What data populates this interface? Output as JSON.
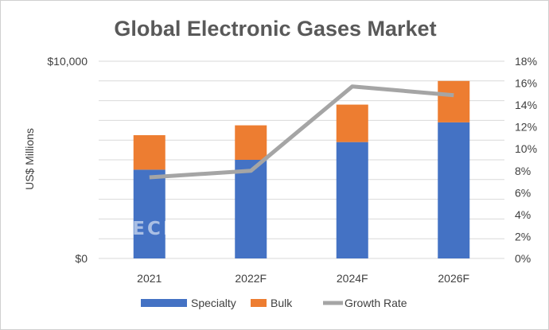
{
  "chart_data": {
    "type": "bar",
    "title": "Global Electronic Gases Market",
    "categories": [
      "2021",
      "2022F",
      "2024F",
      "2026F"
    ],
    "series": [
      {
        "name": "Specialty",
        "values": [
          4500,
          5000,
          5900,
          6900
        ],
        "color": "#4472C4"
      },
      {
        "name": "Bulk",
        "values": [
          1750,
          1750,
          1900,
          2100
        ],
        "color": "#ED7D31"
      }
    ],
    "line_series": {
      "name": "Growth Rate",
      "values": [
        7.4,
        8.0,
        15.7,
        14.9
      ],
      "color": "#A5A5A5",
      "axis": "right"
    },
    "ylabel": "US$ Millions",
    "ylim": [
      0,
      10000
    ],
    "y_ticks_shown": [
      "$0",
      "$10,000"
    ],
    "y2lim": [
      0,
      18
    ],
    "y2_ticks": [
      "0%",
      "2%",
      "4%",
      "6%",
      "8%",
      "10%",
      "12%",
      "14%",
      "16%",
      "18%"
    ],
    "grid": true,
    "legend": "bottom",
    "watermark": "TECHCET"
  }
}
